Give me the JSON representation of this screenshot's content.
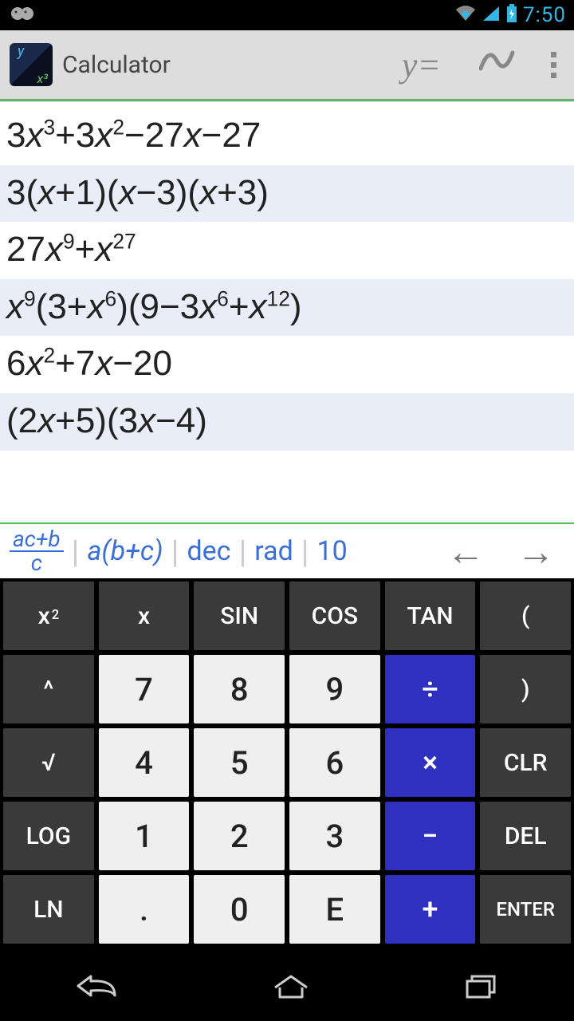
{
  "status": {
    "time": "7:50"
  },
  "appBar": {
    "title": "Calculator",
    "yEquals": "y=",
    "wave": "∿"
  },
  "history": {
    "rows": [
      {
        "html": "3<span class='var'>x</span><sup>3</sup>+3<span class='var'>x</span><sup>2</sup>−27<span class='var'>x</span>−27",
        "alt": false
      },
      {
        "html": "3(<span class='var'>x</span>+1)(<span class='var'>x</span>−3)(<span class='var'>x</span>+3)",
        "alt": true
      },
      {
        "html": "27<span class='var'>x</span><sup>9</sup>+<span class='var'>x</span><sup>27</sup>",
        "alt": false
      },
      {
        "html": "<span class='var'>x</span><sup>9</sup>(3+<span class='var'>x</span><sup>6</sup>)(9−3<span class='var'>x</span><sup>6</sup>+<span class='var'>x</span><sup>12</sup>)",
        "alt": true
      },
      {
        "html": "6<span class='var'>x</span><sup>2</sup>+7<span class='var'>x</span>−20",
        "alt": false
      },
      {
        "html": "(2<span class='var'>x</span>+5)(3<span class='var'>x</span>−4)",
        "alt": true
      }
    ]
  },
  "modeBar": {
    "frac": {
      "num": "ac+b",
      "den": "c"
    },
    "distribute": "a(b+c)",
    "dec": "dec",
    "rad": "rad",
    "base": "10",
    "left": "←",
    "right": "→"
  },
  "keypad": {
    "rows": [
      [
        {
          "label": "x<sup>2</sup>",
          "style": "dark",
          "name": "x-squared"
        },
        {
          "label": "x",
          "style": "dark",
          "name": "x-var"
        },
        {
          "label": "SIN",
          "style": "dark",
          "name": "sin"
        },
        {
          "label": "COS",
          "style": "dark",
          "name": "cos"
        },
        {
          "label": "TAN",
          "style": "dark",
          "name": "tan"
        },
        {
          "label": "(",
          "style": "dark",
          "name": "paren-open"
        }
      ],
      [
        {
          "label": "^",
          "style": "dark",
          "name": "power"
        },
        {
          "label": "7",
          "style": "light",
          "name": "digit-7"
        },
        {
          "label": "8",
          "style": "light",
          "name": "digit-8"
        },
        {
          "label": "9",
          "style": "light",
          "name": "digit-9"
        },
        {
          "label": "÷",
          "style": "op",
          "name": "divide"
        },
        {
          "label": ")",
          "style": "dark",
          "name": "paren-close"
        }
      ],
      [
        {
          "label": "√",
          "style": "dark",
          "name": "sqrt"
        },
        {
          "label": "4",
          "style": "light",
          "name": "digit-4"
        },
        {
          "label": "5",
          "style": "light",
          "name": "digit-5"
        },
        {
          "label": "6",
          "style": "light",
          "name": "digit-6"
        },
        {
          "label": "×",
          "style": "op",
          "name": "multiply"
        },
        {
          "label": "CLR",
          "style": "dark",
          "name": "clear"
        }
      ],
      [
        {
          "label": "LOG",
          "style": "dark",
          "name": "log"
        },
        {
          "label": "1",
          "style": "light",
          "name": "digit-1"
        },
        {
          "label": "2",
          "style": "light",
          "name": "digit-2"
        },
        {
          "label": "3",
          "style": "light",
          "name": "digit-3"
        },
        {
          "label": "−",
          "style": "op",
          "name": "minus"
        },
        {
          "label": "DEL",
          "style": "dark",
          "name": "delete"
        }
      ],
      [
        {
          "label": "LN",
          "style": "dark",
          "name": "ln"
        },
        {
          "label": ".",
          "style": "light",
          "name": "decimal"
        },
        {
          "label": "0",
          "style": "light",
          "name": "digit-0"
        },
        {
          "label": "E",
          "style": "light",
          "name": "exp-e"
        },
        {
          "label": "+",
          "style": "op",
          "name": "plus"
        },
        {
          "label": "ENTER",
          "style": "dark",
          "name": "enter",
          "small": true
        }
      ]
    ]
  },
  "colors": {
    "accentBlue": "#33b5e5",
    "modeBlue": "#3a6fd8",
    "green": "#5cb85c",
    "opBlue": "#3030c0",
    "keyDark": "#3a3a3a",
    "keyLight": "#efefef",
    "historyAlt": "#e8edf7"
  }
}
